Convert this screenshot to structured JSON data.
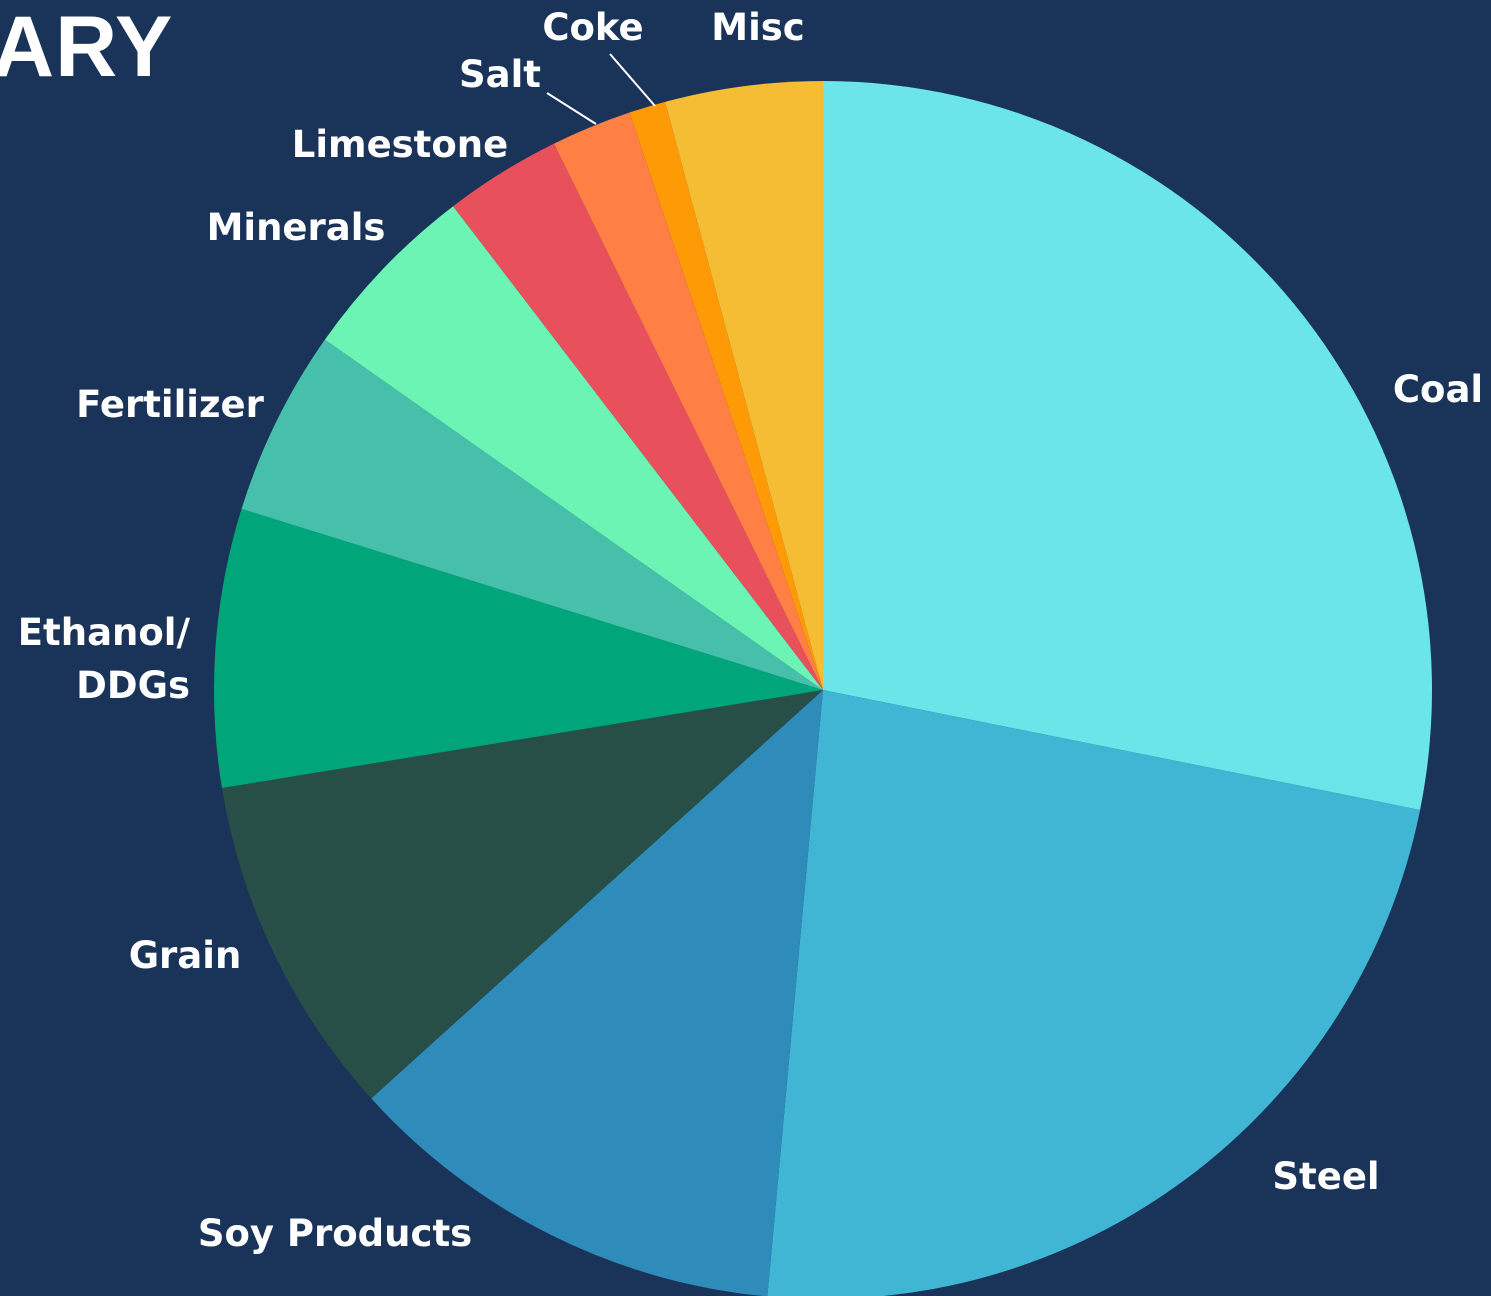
{
  "header": {
    "title_fragment": "ARY"
  },
  "chart_data": {
    "type": "pie",
    "start_angle_deg": 0,
    "direction": "clockwise",
    "categories": [
      "Coal",
      "Steel",
      "Soy Products",
      "Grain",
      "Ethanol/ DDGs",
      "Fertilizer",
      "Minerals",
      "Limestone",
      "Salt",
      "Coke",
      "Misc"
    ],
    "values": [
      29.0,
      24.0,
      12.2,
      9.4,
      7.6,
      5.1,
      5.0,
      3.2,
      2.2,
      1.0,
      4.3
    ],
    "colors": [
      "#6ce5e8",
      "#41b6d4",
      "#2e8bba",
      "#274f48",
      "#00a67a",
      "#47c0ab",
      "#6cf4b4",
      "#e8505b",
      "#ff7f45",
      "#ff9a07",
      "#f5bd33"
    ],
    "labels": [
      {
        "lines": [
          "Coal"
        ]
      },
      {
        "lines": [
          "Steel"
        ]
      },
      {
        "lines": [
          "Soy Products"
        ]
      },
      {
        "lines": [
          "Grain"
        ]
      },
      {
        "lines": [
          "Ethanol/",
          "DDGs"
        ]
      },
      {
        "lines": [
          "Fertilizer"
        ]
      },
      {
        "lines": [
          "Minerals"
        ]
      },
      {
        "lines": [
          "Limestone"
        ]
      },
      {
        "lines": [
          "Salt"
        ]
      },
      {
        "lines": [
          "Coke"
        ]
      },
      {
        "lines": [
          "Misc"
        ]
      }
    ]
  }
}
